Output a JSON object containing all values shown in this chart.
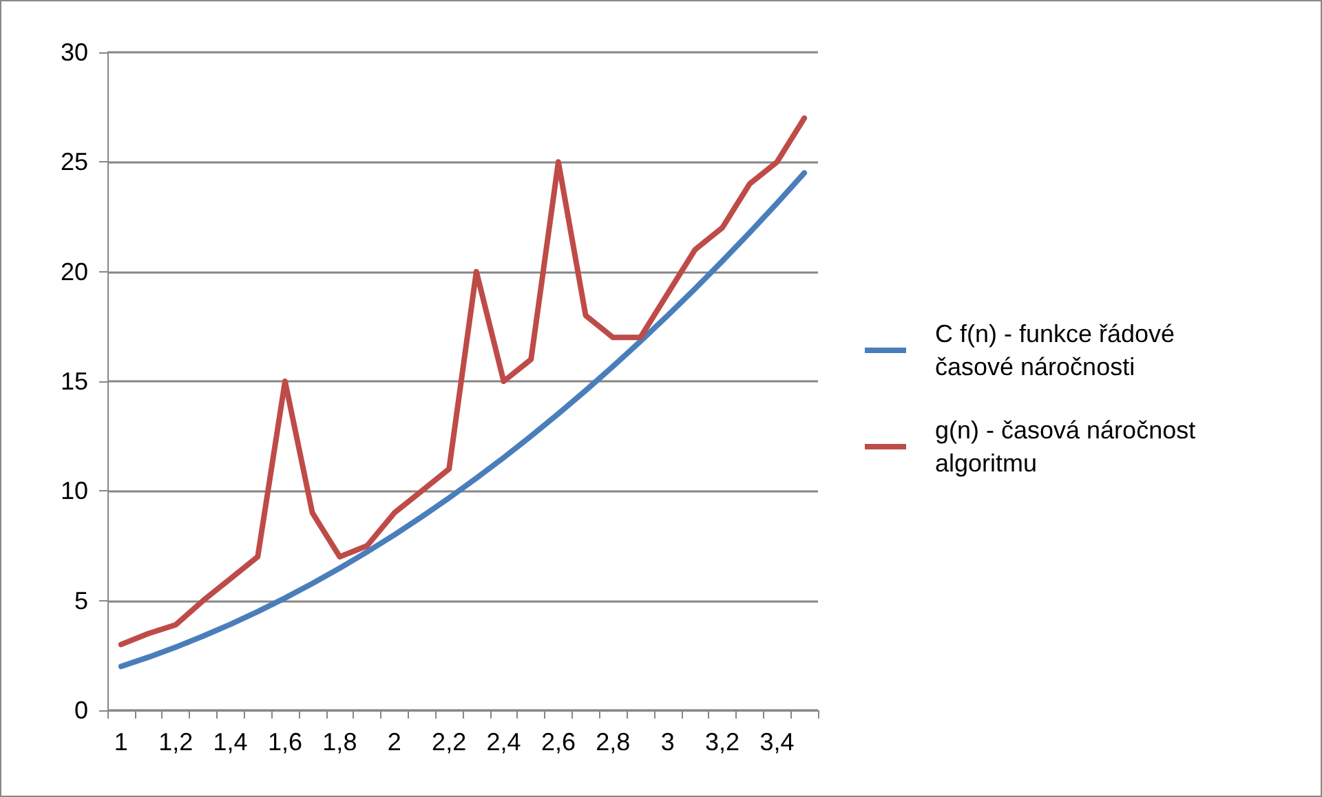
{
  "chart_data": {
    "type": "line",
    "categories": [
      "1",
      null,
      "1,2",
      null,
      "1,4",
      null,
      "1,6",
      null,
      "1,8",
      null,
      "2",
      null,
      "2,2",
      null,
      "2,4",
      null,
      "2,6",
      null,
      "2,8",
      null,
      "3",
      null,
      "3,2",
      null,
      "3,4",
      null
    ],
    "series": [
      {
        "name": "C f(n) - funkce řádové časové náročnosti",
        "color": "#4a7ebb",
        "values": [
          2,
          2.42,
          2.88,
          3.38,
          3.92,
          4.5,
          5.12,
          5.78,
          6.48,
          7.22,
          8,
          8.82,
          9.68,
          10.58,
          11.52,
          12.5,
          13.52,
          14.58,
          15.68,
          16.82,
          18,
          19.22,
          20.48,
          21.78,
          23.12,
          24.5
        ]
      },
      {
        "name": "g(n) - časová náročnost algoritmu",
        "color": "#be4b48",
        "values": [
          3,
          3.5,
          3.9,
          5,
          6,
          7,
          15,
          9,
          7,
          7.5,
          9,
          10,
          11,
          20,
          15,
          16,
          25,
          18,
          17,
          17,
          19,
          21,
          22,
          24,
          25,
          27
        ]
      }
    ],
    "ylim": [
      0,
      30
    ],
    "yticks": [
      0,
      5,
      10,
      15,
      20,
      25,
      30
    ],
    "grid": "y",
    "legend": "right",
    "marker": "none",
    "line_style": "solid"
  }
}
